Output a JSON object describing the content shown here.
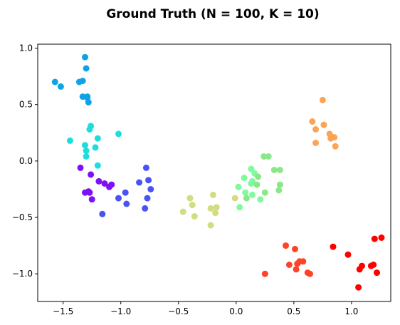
{
  "chart_data": {
    "type": "scatter",
    "title": "Ground Truth (N = 100, K = 10)",
    "xlabel": "",
    "ylabel": "",
    "xlim": [
      -1.72,
      1.34
    ],
    "ylim": [
      -1.245,
      1.035
    ],
    "x_ticks": [
      -1.5,
      -1.0,
      -0.5,
      0.0,
      0.5,
      1.0
    ],
    "x_tick_labels": [
      "−1.5",
      "−1.0",
      "−0.5",
      "0.0",
      "0.5",
      "1.0"
    ],
    "y_ticks": [
      -1.0,
      -0.5,
      0.0,
      0.5,
      1.0
    ],
    "y_tick_labels": [
      "−1.0",
      "−0.5",
      "0.0",
      "0.5",
      "1.0"
    ],
    "grid": false,
    "series": [
      {
        "color": "#0fa3e6",
        "points": [
          [
            -1.57,
            0.7
          ],
          [
            -1.52,
            0.66
          ],
          [
            -1.36,
            0.7
          ],
          [
            -1.33,
            0.71
          ],
          [
            -1.31,
            0.92
          ],
          [
            -1.3,
            0.82
          ],
          [
            -1.33,
            0.57
          ],
          [
            -1.28,
            0.52
          ],
          [
            -1.29,
            0.56
          ],
          [
            -1.29,
            0.57
          ]
        ]
      },
      {
        "color": "#20dddd",
        "points": [
          [
            -1.44,
            0.18
          ],
          [
            -1.31,
            0.14
          ],
          [
            -1.3,
            0.09
          ],
          [
            -1.3,
            0.04
          ],
          [
            -1.26,
            0.31
          ],
          [
            -1.27,
            0.28
          ],
          [
            -1.22,
            0.12
          ],
          [
            -1.2,
            0.2
          ],
          [
            -1.2,
            -0.04
          ],
          [
            -1.02,
            0.24
          ]
        ]
      },
      {
        "color": "#7f10f5",
        "points": [
          [
            -1.35,
            -0.06
          ],
          [
            -1.26,
            -0.12
          ],
          [
            -1.28,
            -0.27
          ],
          [
            -1.31,
            -0.28
          ],
          [
            -1.27,
            -0.28
          ],
          [
            -1.19,
            -0.18
          ],
          [
            -1.14,
            -0.2
          ],
          [
            -1.1,
            -0.23
          ],
          [
            -1.08,
            -0.21
          ],
          [
            -1.25,
            -0.34
          ]
        ]
      },
      {
        "color": "#4b52f5",
        "points": [
          [
            -1.16,
            -0.47
          ],
          [
            -1.02,
            -0.33
          ],
          [
            -0.96,
            -0.28
          ],
          [
            -0.95,
            -0.38
          ],
          [
            -0.84,
            -0.19
          ],
          [
            -0.78,
            -0.06
          ],
          [
            -0.76,
            -0.17
          ],
          [
            -0.77,
            -0.33
          ],
          [
            -0.74,
            -0.25
          ],
          [
            -0.79,
            -0.42
          ]
        ]
      },
      {
        "color": "#d2dc80",
        "points": [
          [
            -0.46,
            -0.45
          ],
          [
            -0.4,
            -0.33
          ],
          [
            -0.38,
            -0.39
          ],
          [
            -0.36,
            -0.49
          ],
          [
            -0.22,
            -0.42
          ],
          [
            -0.22,
            -0.57
          ],
          [
            -0.2,
            -0.3
          ],
          [
            -0.18,
            -0.46
          ],
          [
            -0.17,
            -0.41
          ],
          [
            -0.01,
            -0.33
          ]
        ]
      },
      {
        "color": "#7ffa9e",
        "points": [
          [
            0.02,
            -0.23
          ],
          [
            0.03,
            -0.41
          ],
          [
            0.07,
            -0.15
          ],
          [
            0.08,
            -0.28
          ],
          [
            0.13,
            -0.07
          ],
          [
            0.13,
            -0.2
          ],
          [
            0.14,
            -0.18
          ],
          [
            0.14,
            -0.3
          ],
          [
            0.16,
            -0.11
          ],
          [
            0.21,
            -0.34
          ]
        ]
      },
      {
        "color": "#8ae888",
        "points": [
          [
            0.18,
            -0.21
          ],
          [
            0.24,
            0.04
          ],
          [
            0.28,
            0.04
          ],
          [
            0.25,
            -0.28
          ],
          [
            0.33,
            -0.08
          ],
          [
            0.38,
            -0.08
          ],
          [
            0.38,
            -0.21
          ],
          [
            0.37,
            -0.26
          ],
          [
            0.19,
            -0.14
          ],
          [
            0.09,
            -0.33
          ]
        ]
      },
      {
        "color": "#fca455",
        "points": [
          [
            0.75,
            0.54
          ],
          [
            0.66,
            0.35
          ],
          [
            0.69,
            0.28
          ],
          [
            0.76,
            0.32
          ],
          [
            0.81,
            0.24
          ],
          [
            0.82,
            0.2
          ],
          [
            0.85,
            0.21
          ],
          [
            0.86,
            0.13
          ],
          [
            0.69,
            0.16
          ],
          [
            0.84,
            0.21
          ]
        ]
      },
      {
        "color": "#ff4326",
        "points": [
          [
            0.25,
            -1.0
          ],
          [
            0.43,
            -0.75
          ],
          [
            0.46,
            -0.92
          ],
          [
            0.51,
            -0.78
          ],
          [
            0.55,
            -0.89
          ],
          [
            0.52,
            -0.96
          ],
          [
            0.53,
            -0.91
          ],
          [
            0.58,
            -0.89
          ],
          [
            0.62,
            -0.99
          ],
          [
            0.64,
            -1.0
          ]
        ]
      },
      {
        "color": "#ff0000",
        "points": [
          [
            0.84,
            -0.76
          ],
          [
            0.97,
            -0.83
          ],
          [
            1.06,
            -1.12
          ],
          [
            1.07,
            -0.96
          ],
          [
            1.09,
            -0.93
          ],
          [
            1.17,
            -0.93
          ],
          [
            1.19,
            -0.92
          ],
          [
            1.2,
            -0.69
          ],
          [
            1.22,
            -0.99
          ],
          [
            1.26,
            -0.68
          ]
        ]
      }
    ]
  }
}
